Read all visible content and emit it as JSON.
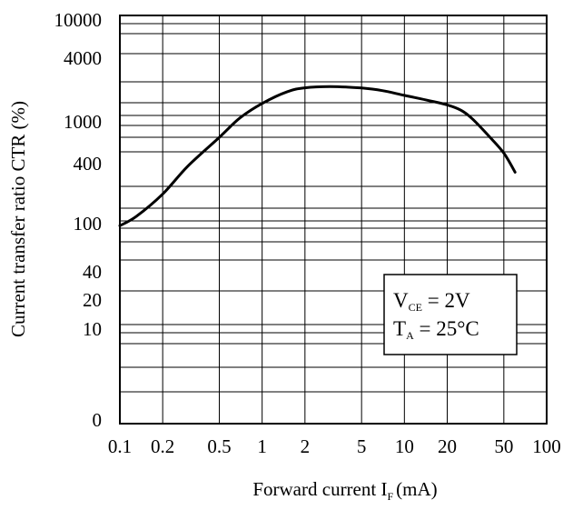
{
  "chart_data": {
    "type": "line",
    "x_scale": "log",
    "y_scale": "custom",
    "xlabel": "Forward current I",
    "xlabel_sub": "F",
    "xlabel_unit": "(mA)",
    "ylabel": "Current transfer ratio CTR (%)",
    "xlim": [
      0.1,
      100
    ],
    "x_ticks": [
      {
        "value": 0.1,
        "label": "0.1"
      },
      {
        "value": 0.2,
        "label": "0.2"
      },
      {
        "value": 0.5,
        "label": "0.5"
      },
      {
        "value": 1,
        "label": "1"
      },
      {
        "value": 2,
        "label": "2"
      },
      {
        "value": 5,
        "label": "5"
      },
      {
        "value": 10,
        "label": "10"
      },
      {
        "value": 20,
        "label": "20"
      },
      {
        "value": 50,
        "label": "50"
      },
      {
        "value": 100,
        "label": "100"
      }
    ],
    "y_ticks": [
      {
        "label": "10000"
      },
      {
        "label": "4000"
      },
      {
        "label": "1000"
      },
      {
        "label": "400"
      },
      {
        "label": "100"
      },
      {
        "label": "40"
      },
      {
        "label": "20"
      },
      {
        "label": "10"
      },
      {
        "label": "0"
      }
    ],
    "grid": true,
    "series": [
      {
        "x": [
          0.1,
          0.13,
          0.2,
          0.3,
          0.5,
          0.7,
          1,
          1.5,
          2,
          3,
          5,
          7,
          10,
          15,
          20,
          25,
          30,
          40,
          50,
          60
        ],
        "y": [
          90,
          110,
          180,
          330,
          620,
          950,
          1300,
          1680,
          1830,
          1880,
          1820,
          1720,
          1550,
          1380,
          1260,
          1120,
          930,
          620,
          440,
          290
        ]
      }
    ],
    "annotation": {
      "line1_prefix": "V",
      "line1_sub": "CE",
      "line1_suffix": " = 2V",
      "line2_prefix": "T",
      "line2_sub": "A",
      "line2_suffix": " = 25°C",
      "placement": "right"
    }
  }
}
